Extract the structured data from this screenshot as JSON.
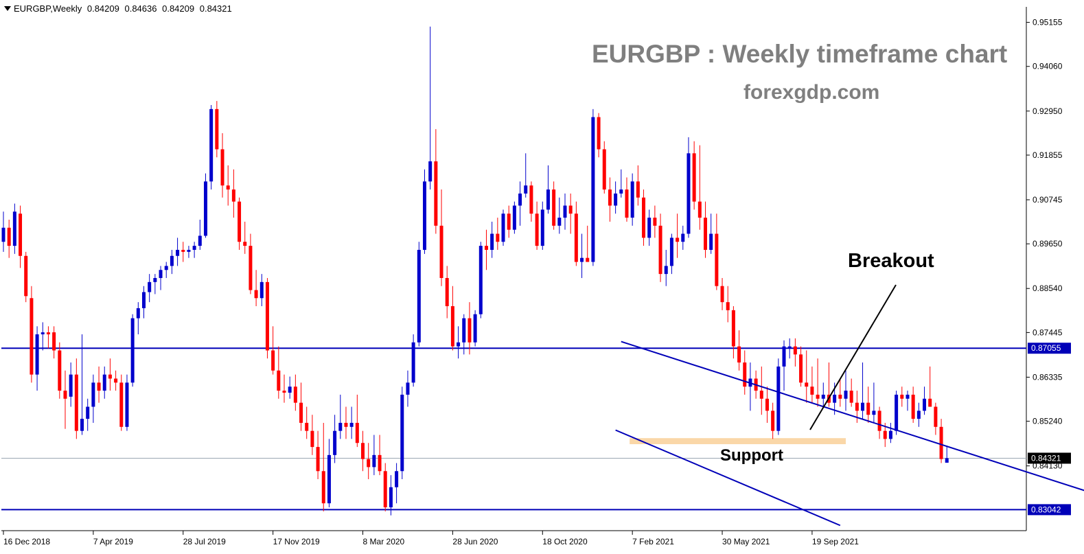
{
  "header": {
    "symbol": "EURGBP,Weekly",
    "open": "0.84209",
    "high": "0.84636",
    "low": "0.84209",
    "close": "0.84321"
  },
  "annotations": {
    "title": "EURGBP : Weekly timeframe chart",
    "subtitle": "forexgdp.com",
    "breakout": "Breakout",
    "support": "Support"
  },
  "colors": {
    "bull": "#0000cc",
    "bear": "#ff0000",
    "level_line": "#0000b8",
    "support_zone": "#fad7a8",
    "axis": "#000000",
    "current_price_line": "#9aa6b2"
  },
  "chart_data": {
    "type": "candlestick",
    "title": "EURGBP : Weekly timeframe chart",
    "ylim": [
      0.8252,
      0.9554
    ],
    "y_ticks": [
      "0.95155",
      "0.94060",
      "0.92950",
      "0.91855",
      "0.90745",
      "0.89650",
      "0.88540",
      "0.87445",
      "0.86335",
      "0.85240",
      "0.84130"
    ],
    "x_ticks": [
      "16 Dec 2018",
      "7 Apr 2019",
      "28 Jul 2019",
      "17 Nov 2019",
      "8 Mar 2020",
      "28 Jun 2020",
      "18 Oct 2020",
      "7 Feb 2021",
      "30 May 2021",
      "19 Sep 2021"
    ],
    "highlight_levels": [
      {
        "price": 0.87055,
        "label": "0.87055"
      },
      {
        "price": 0.83042,
        "label": "0.83042"
      }
    ],
    "current_price": {
      "price": 0.84321,
      "label": "0.84321"
    },
    "support_zone": {
      "from": "7 Feb 2021",
      "to": "31 Oct 2021",
      "price_low": 0.8467,
      "price_high": 0.8482
    },
    "trend_channel": [
      {
        "from": {
          "x": "24 Jan 2021",
          "y": 0.8722
        },
        "to": {
          "x": "4 Sep 2022",
          "y": 0.8345
        }
      },
      {
        "from": {
          "x": "17 Jan 2021",
          "y": 0.8502
        },
        "to": {
          "x": "24 Oct 2021",
          "y": 0.8265
        }
      }
    ],
    "series": [
      {
        "candles": [
          [
            0.897,
            0.9045,
            0.8945,
            0.9005
          ],
          [
            0.9005,
            0.9025,
            0.893,
            0.896
          ],
          [
            0.896,
            0.9065,
            0.894,
            0.9045
          ],
          [
            0.904,
            0.906,
            0.8905,
            0.8935
          ],
          [
            0.8935,
            0.8945,
            0.882,
            0.8835
          ],
          [
            0.883,
            0.886,
            0.862,
            0.864
          ],
          [
            0.864,
            0.876,
            0.86,
            0.874
          ],
          [
            0.874,
            0.877,
            0.87,
            0.8745
          ],
          [
            0.8745,
            0.876,
            0.8705,
            0.874
          ],
          [
            0.8745,
            0.876,
            0.868,
            0.87
          ],
          [
            0.87,
            0.872,
            0.858,
            0.86
          ],
          [
            0.86,
            0.865,
            0.8505,
            0.858
          ],
          [
            0.8585,
            0.867,
            0.856,
            0.864
          ],
          [
            0.864,
            0.868,
            0.848,
            0.85
          ],
          [
            0.85,
            0.874,
            0.849,
            0.853
          ],
          [
            0.853,
            0.858,
            0.85,
            0.856
          ],
          [
            0.856,
            0.864,
            0.852,
            0.862
          ],
          [
            0.862,
            0.866,
            0.857,
            0.86
          ],
          [
            0.86,
            0.866,
            0.858,
            0.864
          ],
          [
            0.864,
            0.868,
            0.86,
            0.863
          ],
          [
            0.863,
            0.865,
            0.86,
            0.862
          ],
          [
            0.862,
            0.864,
            0.85,
            0.851
          ],
          [
            0.851,
            0.864,
            0.85,
            0.862
          ],
          [
            0.862,
            0.879,
            0.861,
            0.878
          ],
          [
            0.878,
            0.882,
            0.874,
            0.8805
          ],
          [
            0.8805,
            0.886,
            0.878,
            0.8845
          ],
          [
            0.8845,
            0.889,
            0.882,
            0.887
          ],
          [
            0.887,
            0.889,
            0.884,
            0.888
          ],
          [
            0.888,
            0.891,
            0.885,
            0.89
          ],
          [
            0.89,
            0.892,
            0.888,
            0.891
          ],
          [
            0.891,
            0.895,
            0.889,
            0.8935
          ],
          [
            0.8935,
            0.898,
            0.891,
            0.895
          ],
          [
            0.895,
            0.897,
            0.892,
            0.8945
          ],
          [
            0.8945,
            0.896,
            0.893,
            0.895
          ],
          [
            0.895,
            0.897,
            0.893,
            0.896
          ],
          [
            0.896,
            0.9025,
            0.895,
            0.8985
          ],
          [
            0.8985,
            0.914,
            0.898,
            0.912
          ],
          [
            0.912,
            0.931,
            0.91,
            0.93
          ],
          [
            0.93,
            0.932,
            0.918,
            0.92
          ],
          [
            0.92,
            0.924,
            0.908,
            0.911
          ],
          [
            0.911,
            0.916,
            0.906,
            0.91
          ],
          [
            0.91,
            0.915,
            0.903,
            0.907
          ],
          [
            0.907,
            0.908,
            0.895,
            0.897
          ],
          [
            0.897,
            0.902,
            0.894,
            0.896
          ],
          [
            0.896,
            0.899,
            0.884,
            0.885
          ],
          [
            0.885,
            0.89,
            0.881,
            0.883
          ],
          [
            0.883,
            0.889,
            0.881,
            0.887
          ],
          [
            0.887,
            0.888,
            0.868,
            0.87
          ],
          [
            0.87,
            0.876,
            0.864,
            0.865
          ],
          [
            0.865,
            0.871,
            0.858,
            0.86
          ],
          [
            0.86,
            0.864,
            0.857,
            0.8595
          ],
          [
            0.8595,
            0.8635,
            0.858,
            0.861
          ],
          [
            0.861,
            0.864,
            0.855,
            0.857
          ],
          [
            0.857,
            0.862,
            0.85,
            0.852
          ],
          [
            0.852,
            0.856,
            0.848,
            0.85
          ],
          [
            0.85,
            0.854,
            0.844,
            0.846
          ],
          [
            0.846,
            0.85,
            0.838,
            0.84
          ],
          [
            0.84,
            0.852,
            0.83,
            0.832
          ],
          [
            0.832,
            0.848,
            0.831,
            0.844
          ],
          [
            0.844,
            0.854,
            0.842,
            0.85
          ],
          [
            0.85,
            0.859,
            0.848,
            0.852
          ],
          [
            0.852,
            0.856,
            0.848,
            0.851
          ],
          [
            0.851,
            0.856,
            0.848,
            0.852
          ],
          [
            0.852,
            0.859,
            0.846,
            0.847
          ],
          [
            0.847,
            0.85,
            0.84,
            0.843
          ],
          [
            0.843,
            0.847,
            0.838,
            0.841
          ],
          [
            0.841,
            0.849,
            0.839,
            0.844
          ],
          [
            0.844,
            0.849,
            0.839,
            0.84
          ],
          [
            0.84,
            0.842,
            0.83,
            0.831
          ],
          [
            0.831,
            0.839,
            0.829,
            0.836
          ],
          [
            0.836,
            0.842,
            0.832,
            0.84
          ],
          [
            0.84,
            0.861,
            0.838,
            0.859
          ],
          [
            0.859,
            0.865,
            0.856,
            0.862
          ],
          [
            0.862,
            0.874,
            0.861,
            0.872
          ],
          [
            0.872,
            0.897,
            0.871,
            0.895
          ],
          [
            0.895,
            0.915,
            0.894,
            0.912
          ],
          [
            0.912,
            0.9505,
            0.91,
            0.917
          ],
          [
            0.917,
            0.925,
            0.899,
            0.901
          ],
          [
            0.901,
            0.91,
            0.886,
            0.888
          ],
          [
            0.888,
            0.891,
            0.878,
            0.881
          ],
          [
            0.881,
            0.886,
            0.87,
            0.871
          ],
          [
            0.871,
            0.876,
            0.868,
            0.872
          ],
          [
            0.872,
            0.879,
            0.869,
            0.878
          ],
          [
            0.878,
            0.882,
            0.869,
            0.872
          ],
          [
            0.872,
            0.88,
            0.871,
            0.879
          ],
          [
            0.879,
            0.897,
            0.878,
            0.896
          ],
          [
            0.896,
            0.9,
            0.89,
            0.895
          ],
          [
            0.895,
            0.902,
            0.893,
            0.899
          ],
          [
            0.899,
            0.903,
            0.895,
            0.897
          ],
          [
            0.897,
            0.905,
            0.896,
            0.904
          ],
          [
            0.904,
            0.906,
            0.898,
            0.9
          ],
          [
            0.9,
            0.907,
            0.899,
            0.906
          ],
          [
            0.906,
            0.912,
            0.901,
            0.909
          ],
          [
            0.909,
            0.919,
            0.908,
            0.911
          ],
          [
            0.911,
            0.912,
            0.902,
            0.904
          ],
          [
            0.904,
            0.907,
            0.895,
            0.896
          ],
          [
            0.896,
            0.907,
            0.895,
            0.905
          ],
          [
            0.905,
            0.916,
            0.904,
            0.91
          ],
          [
            0.91,
            0.912,
            0.9,
            0.901
          ],
          [
            0.901,
            0.908,
            0.899,
            0.903
          ],
          [
            0.903,
            0.909,
            0.9,
            0.906
          ],
          [
            0.906,
            0.909,
            0.899,
            0.904
          ],
          [
            0.904,
            0.907,
            0.891,
            0.892
          ],
          [
            0.892,
            0.899,
            0.888,
            0.893
          ],
          [
            0.893,
            0.901,
            0.892,
            0.892
          ],
          [
            0.892,
            0.93,
            0.891,
            0.928
          ],
          [
            0.928,
            0.929,
            0.918,
            0.92
          ],
          [
            0.92,
            0.922,
            0.909,
            0.91
          ],
          [
            0.91,
            0.913,
            0.902,
            0.906
          ],
          [
            0.906,
            0.912,
            0.904,
            0.909
          ],
          [
            0.909,
            0.915,
            0.908,
            0.91
          ],
          [
            0.91,
            0.913,
            0.902,
            0.903
          ],
          [
            0.903,
            0.914,
            0.901,
            0.912
          ],
          [
            0.912,
            0.916,
            0.906,
            0.908
          ],
          [
            0.908,
            0.91,
            0.896,
            0.898
          ],
          [
            0.898,
            0.905,
            0.896,
            0.903
          ],
          [
            0.903,
            0.906,
            0.898,
            0.901
          ],
          [
            0.901,
            0.904,
            0.887,
            0.889
          ],
          [
            0.889,
            0.895,
            0.886,
            0.891
          ],
          [
            0.891,
            0.899,
            0.889,
            0.898
          ],
          [
            0.898,
            0.904,
            0.893,
            0.897
          ],
          [
            0.897,
            0.901,
            0.895,
            0.899
          ],
          [
            0.899,
            0.923,
            0.898,
            0.919
          ],
          [
            0.919,
            0.922,
            0.905,
            0.907
          ],
          [
            0.907,
            0.921,
            0.9,
            0.903
          ],
          [
            0.903,
            0.907,
            0.893,
            0.895
          ],
          [
            0.895,
            0.904,
            0.894,
            0.899
          ],
          [
            0.899,
            0.904,
            0.885,
            0.886
          ],
          [
            0.886,
            0.888,
            0.88,
            0.882
          ],
          [
            0.882,
            0.886,
            0.877,
            0.88
          ],
          [
            0.88,
            0.881,
            0.868,
            0.871
          ],
          [
            0.871,
            0.875,
            0.865,
            0.867
          ],
          [
            0.867,
            0.87,
            0.859,
            0.861
          ],
          [
            0.861,
            0.867,
            0.855,
            0.863
          ],
          [
            0.863,
            0.865,
            0.858,
            0.86
          ],
          [
            0.86,
            0.866,
            0.854,
            0.858
          ],
          [
            0.858,
            0.861,
            0.852,
            0.855
          ],
          [
            0.855,
            0.857,
            0.848,
            0.85
          ],
          [
            0.85,
            0.868,
            0.849,
            0.866
          ],
          [
            0.866,
            0.8725,
            0.86,
            0.871
          ],
          [
            0.871,
            0.873,
            0.868,
            0.871
          ],
          [
            0.871,
            0.873,
            0.866,
            0.869
          ],
          [
            0.869,
            0.871,
            0.861,
            0.862
          ],
          [
            0.862,
            0.87,
            0.857,
            0.861
          ],
          [
            0.861,
            0.866,
            0.857,
            0.859
          ],
          [
            0.859,
            0.868,
            0.856,
            0.858
          ],
          [
            0.858,
            0.862,
            0.856,
            0.859
          ],
          [
            0.859,
            0.867,
            0.856,
            0.857
          ],
          [
            0.857,
            0.862,
            0.854,
            0.859
          ],
          [
            0.859,
            0.863,
            0.856,
            0.858
          ],
          [
            0.858,
            0.865,
            0.855,
            0.86
          ],
          [
            0.86,
            0.863,
            0.856,
            0.857
          ],
          [
            0.857,
            0.86,
            0.852,
            0.855
          ],
          [
            0.855,
            0.867,
            0.853,
            0.857
          ],
          [
            0.857,
            0.861,
            0.852,
            0.854
          ],
          [
            0.854,
            0.862,
            0.852,
            0.855
          ],
          [
            0.855,
            0.856,
            0.848,
            0.85
          ],
          [
            0.85,
            0.852,
            0.846,
            0.848
          ],
          [
            0.848,
            0.852,
            0.847,
            0.85
          ],
          [
            0.85,
            0.86,
            0.849,
            0.859
          ],
          [
            0.859,
            0.861,
            0.856,
            0.858
          ],
          [
            0.858,
            0.86,
            0.855,
            0.859
          ],
          [
            0.859,
            0.861,
            0.852,
            0.853
          ],
          [
            0.853,
            0.857,
            0.851,
            0.855
          ],
          [
            0.855,
            0.861,
            0.854,
            0.858
          ],
          [
            0.858,
            0.866,
            0.856,
            0.856
          ],
          [
            0.856,
            0.857,
            0.849,
            0.851
          ],
          [
            0.851,
            0.853,
            0.842,
            0.843
          ],
          [
            0.84209,
            0.84636,
            0.84209,
            0.84321
          ]
        ]
      }
    ]
  }
}
